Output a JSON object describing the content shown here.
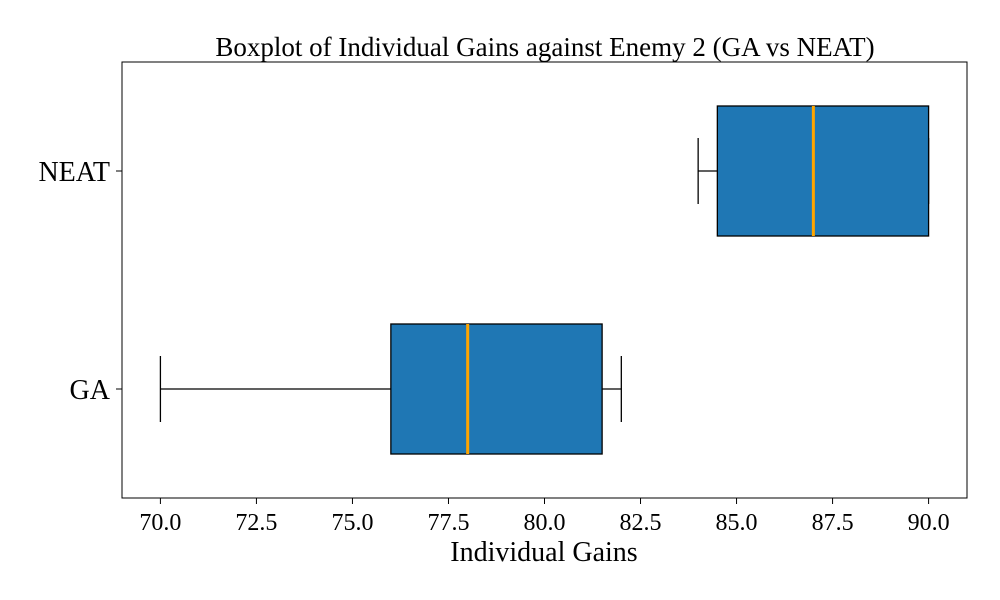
{
  "chart_data": {
    "type": "boxplot",
    "orientation": "horizontal",
    "title": "Boxplot of Individual Gains against Enemy 2 (GA vs NEAT)",
    "xlabel": "Individual Gains",
    "ylabel": "",
    "xlim": [
      69.0,
      91.0
    ],
    "xticks": [
      "70.0",
      "72.5",
      "75.0",
      "77.5",
      "80.0",
      "82.5",
      "85.0",
      "87.5",
      "90.0"
    ],
    "categories": [
      "GA",
      "NEAT"
    ],
    "boxes": [
      {
        "label": "GA",
        "whisker_low": 70.0,
        "q1": 76.0,
        "median": 78.0,
        "q3": 81.5,
        "whisker_high": 82.0
      },
      {
        "label": "NEAT",
        "whisker_low": 84.0,
        "q1": 84.5,
        "median": 87.0,
        "q3": 90.0,
        "whisker_high": 90.0
      }
    ],
    "box_color": "#1f77b4",
    "median_color": "#ffa500",
    "grid": false
  }
}
